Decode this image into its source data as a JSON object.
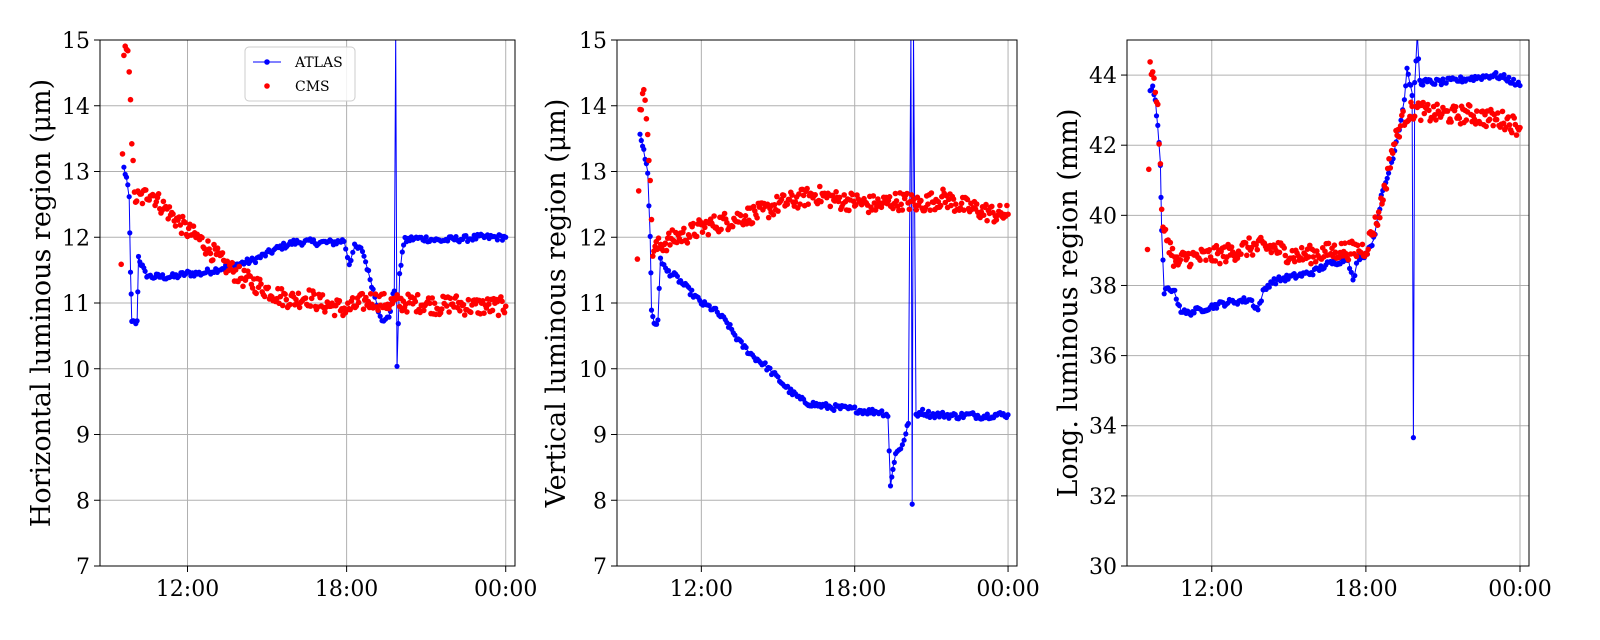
{
  "chart_data": [
    {
      "type": "scatter",
      "ylabel": "Horizontal luminous region (μm)",
      "xlabel": "",
      "x_range_hours": [
        8.7,
        24.35
      ],
      "ylim": [
        7,
        15
      ],
      "x_ticks": [
        {
          "hour": 12,
          "label": "12:00"
        },
        {
          "hour": 18,
          "label": "18:00"
        },
        {
          "hour": 24,
          "label": "00:00"
        }
      ],
      "y_ticks": [
        7,
        8,
        9,
        10,
        11,
        12,
        13,
        14,
        15
      ],
      "grid": true,
      "legend": {
        "placement": "top-center",
        "entries": [
          "ATLAS",
          "CMS"
        ]
      },
      "series": [
        {
          "name": "ATLAS",
          "color": "#0000ff",
          "style": "line+markers",
          "points": [
            [
              9.6,
              13.05
            ],
            [
              9.7,
              12.9
            ],
            [
              9.8,
              12.6
            ],
            [
              9.85,
              11.5
            ],
            [
              9.9,
              10.7
            ],
            [
              10.0,
              10.7
            ],
            [
              10.1,
              10.7
            ],
            [
              10.15,
              11.7
            ],
            [
              10.25,
              11.6
            ],
            [
              10.4,
              11.45
            ],
            [
              10.6,
              11.4
            ],
            [
              11.0,
              11.4
            ],
            [
              11.5,
              11.4
            ],
            [
              12.0,
              11.45
            ],
            [
              12.5,
              11.45
            ],
            [
              13.0,
              11.5
            ],
            [
              13.5,
              11.55
            ],
            [
              14.0,
              11.6
            ],
            [
              14.5,
              11.65
            ],
            [
              15.0,
              11.75
            ],
            [
              15.5,
              11.85
            ],
            [
              16.0,
              11.92
            ],
            [
              16.5,
              11.93
            ],
            [
              17.0,
              11.92
            ],
            [
              17.5,
              11.92
            ],
            [
              17.9,
              11.95
            ],
            [
              18.1,
              11.6
            ],
            [
              18.3,
              11.85
            ],
            [
              18.6,
              11.8
            ],
            [
              19.0,
              11.2
            ],
            [
              19.2,
              10.9
            ],
            [
              19.4,
              10.7
            ],
            [
              19.6,
              10.8
            ],
            [
              19.7,
              11.0
            ],
            [
              19.8,
              11.2
            ],
            [
              19.85,
              15.1
            ],
            [
              19.9,
              10.0
            ],
            [
              20.0,
              11.4
            ],
            [
              20.1,
              11.8
            ],
            [
              20.2,
              11.95
            ],
            [
              20.5,
              11.98
            ],
            [
              21.0,
              11.98
            ],
            [
              21.5,
              11.95
            ],
            [
              22.0,
              11.97
            ],
            [
              22.5,
              11.98
            ],
            [
              23.0,
              12.0
            ],
            [
              23.5,
              12.0
            ],
            [
              24.0,
              12.0
            ]
          ]
        },
        {
          "name": "CMS",
          "color": "#ff0000",
          "style": "markers",
          "points": [
            [
              9.5,
              11.65
            ],
            [
              9.6,
              14.7
            ],
            [
              9.7,
              14.85
            ],
            [
              9.8,
              14.6
            ],
            [
              9.85,
              14.2
            ],
            [
              9.9,
              13.5
            ],
            [
              10.0,
              12.6
            ],
            [
              10.3,
              12.6
            ],
            [
              10.6,
              12.7
            ],
            [
              11.0,
              12.5
            ],
            [
              11.5,
              12.3
            ],
            [
              12.0,
              12.1
            ],
            [
              12.5,
              11.95
            ],
            [
              13.0,
              11.75
            ],
            [
              13.5,
              11.55
            ],
            [
              14.0,
              11.4
            ],
            [
              14.5,
              11.3
            ],
            [
              15.0,
              11.2
            ],
            [
              15.5,
              11.1
            ],
            [
              16.0,
              11.05
            ],
            [
              16.5,
              11.1
            ],
            [
              17.0,
              11.0
            ],
            [
              17.5,
              10.95
            ],
            [
              18.0,
              10.9
            ],
            [
              18.5,
              11.0
            ],
            [
              19.0,
              11.05
            ],
            [
              19.5,
              11.0
            ],
            [
              20.0,
              11.0
            ],
            [
              20.5,
              11.0
            ],
            [
              21.0,
              11.0
            ],
            [
              21.5,
              10.95
            ],
            [
              22.0,
              11.0
            ],
            [
              22.5,
              10.95
            ],
            [
              23.0,
              10.95
            ],
            [
              23.5,
              10.95
            ],
            [
              24.0,
              10.95
            ]
          ]
        }
      ]
    },
    {
      "type": "scatter",
      "ylabel": "Vertical luminous region (μm)",
      "xlabel": "",
      "x_range_hours": [
        8.7,
        24.35
      ],
      "ylim": [
        7,
        15
      ],
      "x_ticks": [
        {
          "hour": 12,
          "label": "12:00"
        },
        {
          "hour": 18,
          "label": "18:00"
        },
        {
          "hour": 24,
          "label": "00:00"
        }
      ],
      "y_ticks": [
        7,
        8,
        9,
        10,
        11,
        12,
        13,
        14,
        15
      ],
      "grid": true,
      "series": [
        {
          "name": "ATLAS",
          "color": "#0000ff",
          "style": "line+markers",
          "points": [
            [
              9.6,
              13.6
            ],
            [
              9.7,
              13.4
            ],
            [
              9.8,
              13.2
            ],
            [
              9.9,
              13.0
            ],
            [
              10.0,
              12.0
            ],
            [
              10.05,
              10.9
            ],
            [
              10.15,
              10.7
            ],
            [
              10.3,
              10.7
            ],
            [
              10.4,
              11.7
            ],
            [
              10.6,
              11.5
            ],
            [
              11.0,
              11.4
            ],
            [
              11.5,
              11.2
            ],
            [
              12.0,
              11.0
            ],
            [
              12.5,
              10.9
            ],
            [
              13.0,
              10.7
            ],
            [
              13.5,
              10.4
            ],
            [
              14.0,
              10.2
            ],
            [
              14.5,
              10.05
            ],
            [
              15.0,
              9.85
            ],
            [
              15.5,
              9.65
            ],
            [
              16.0,
              9.5
            ],
            [
              16.5,
              9.45
            ],
            [
              17.0,
              9.42
            ],
            [
              17.5,
              9.4
            ],
            [
              18.0,
              9.38
            ],
            [
              18.5,
              9.35
            ],
            [
              19.0,
              9.35
            ],
            [
              19.3,
              9.3
            ],
            [
              19.4,
              8.2
            ],
            [
              19.5,
              8.5
            ],
            [
              19.6,
              8.7
            ],
            [
              19.8,
              8.8
            ],
            [
              20.0,
              9.0
            ],
            [
              20.1,
              9.2
            ],
            [
              20.2,
              15.1
            ],
            [
              20.25,
              7.9
            ],
            [
              20.3,
              15.1
            ],
            [
              20.4,
              9.3
            ],
            [
              20.6,
              9.35
            ],
            [
              21.0,
              9.3
            ],
            [
              21.5,
              9.3
            ],
            [
              22.0,
              9.28
            ],
            [
              22.5,
              9.3
            ],
            [
              23.0,
              9.28
            ],
            [
              23.5,
              9.3
            ],
            [
              24.0,
              9.3
            ]
          ]
        },
        {
          "name": "CMS",
          "color": "#ff0000",
          "style": "markers",
          "points": [
            [
              9.5,
              11.6
            ],
            [
              9.6,
              14.0
            ],
            [
              9.7,
              14.1
            ],
            [
              9.8,
              14.15
            ],
            [
              9.9,
              13.7
            ],
            [
              10.1,
              11.8
            ],
            [
              10.5,
              11.9
            ],
            [
              11.0,
              12.0
            ],
            [
              11.5,
              12.05
            ],
            [
              12.0,
              12.15
            ],
            [
              12.5,
              12.2
            ],
            [
              13.0,
              12.25
            ],
            [
              13.5,
              12.3
            ],
            [
              14.0,
              12.35
            ],
            [
              14.5,
              12.4
            ],
            [
              15.0,
              12.5
            ],
            [
              15.5,
              12.55
            ],
            [
              16.0,
              12.6
            ],
            [
              16.5,
              12.65
            ],
            [
              17.0,
              12.6
            ],
            [
              17.5,
              12.55
            ],
            [
              18.0,
              12.55
            ],
            [
              18.5,
              12.5
            ],
            [
              19.0,
              12.5
            ],
            [
              19.5,
              12.55
            ],
            [
              20.0,
              12.55
            ],
            [
              20.5,
              12.5
            ],
            [
              21.0,
              12.55
            ],
            [
              21.5,
              12.6
            ],
            [
              22.0,
              12.5
            ],
            [
              22.5,
              12.45
            ],
            [
              23.0,
              12.4
            ],
            [
              23.5,
              12.35
            ],
            [
              24.0,
              12.35
            ]
          ]
        }
      ]
    },
    {
      "type": "scatter",
      "ylabel": "Long. luminous region (mm)",
      "xlabel": "",
      "x_range_hours": [
        8.7,
        24.35
      ],
      "ylim": [
        30,
        45
      ],
      "x_ticks": [
        {
          "hour": 12,
          "label": "12:00"
        },
        {
          "hour": 18,
          "label": "18:00"
        },
        {
          "hour": 24,
          "label": "00:00"
        }
      ],
      "y_ticks": [
        30,
        32,
        34,
        36,
        38,
        40,
        42,
        44
      ],
      "grid": true,
      "series": [
        {
          "name": "ATLAS",
          "color": "#0000ff",
          "style": "line+markers",
          "points": [
            [
              9.6,
              43.5
            ],
            [
              9.7,
              43.7
            ],
            [
              9.8,
              43.3
            ],
            [
              9.9,
              42.5
            ],
            [
              10.0,
              41.5
            ],
            [
              10.05,
              39.5
            ],
            [
              10.15,
              37.8
            ],
            [
              10.3,
              37.9
            ],
            [
              10.5,
              37.9
            ],
            [
              10.8,
              37.3
            ],
            [
              11.0,
              37.2
            ],
            [
              11.5,
              37.3
            ],
            [
              12.0,
              37.4
            ],
            [
              12.5,
              37.5
            ],
            [
              13.0,
              37.55
            ],
            [
              13.5,
              37.6
            ],
            [
              13.8,
              37.3
            ],
            [
              14.0,
              37.8
            ],
            [
              14.3,
              38.1
            ],
            [
              14.8,
              38.2
            ],
            [
              15.5,
              38.3
            ],
            [
              16.0,
              38.4
            ],
            [
              16.5,
              38.6
            ],
            [
              17.0,
              38.7
            ],
            [
              17.3,
              38.8
            ],
            [
              17.5,
              38.1
            ],
            [
              17.7,
              38.8
            ],
            [
              18.0,
              38.9
            ],
            [
              18.3,
              39.3
            ],
            [
              18.6,
              40.5
            ],
            [
              19.0,
              41.5
            ],
            [
              19.3,
              42.5
            ],
            [
              19.5,
              43.3
            ],
            [
              19.6,
              44.2
            ],
            [
              19.7,
              43.8
            ],
            [
              19.8,
              43.5
            ],
            [
              19.85,
              33.6
            ],
            [
              19.9,
              43.7
            ],
            [
              20.0,
              45.2
            ],
            [
              20.1,
              43.8
            ],
            [
              20.5,
              43.8
            ],
            [
              21.0,
              43.8
            ],
            [
              21.5,
              43.85
            ],
            [
              22.0,
              43.9
            ],
            [
              22.5,
              43.95
            ],
            [
              23.0,
              44.0
            ],
            [
              23.5,
              43.9
            ],
            [
              24.0,
              43.7
            ]
          ]
        },
        {
          "name": "CMS",
          "color": "#ff0000",
          "style": "markers",
          "points": [
            [
              9.5,
              38.9
            ],
            [
              9.6,
              44.2
            ],
            [
              9.7,
              44.3
            ],
            [
              9.8,
              43.4
            ],
            [
              9.9,
              43.2
            ],
            [
              10.0,
              41.2
            ],
            [
              10.1,
              39.5
            ],
            [
              10.3,
              39.3
            ],
            [
              10.6,
              38.6
            ],
            [
              11.0,
              38.8
            ],
            [
              11.5,
              38.8
            ],
            [
              12.0,
              38.85
            ],
            [
              12.5,
              38.9
            ],
            [
              13.0,
              39.0
            ],
            [
              13.5,
              39.1
            ],
            [
              14.0,
              39.1
            ],
            [
              14.5,
              39.05
            ],
            [
              15.0,
              38.9
            ],
            [
              15.5,
              38.85
            ],
            [
              16.0,
              38.9
            ],
            [
              16.5,
              38.95
            ],
            [
              17.0,
              39.0
            ],
            [
              17.5,
              39.0
            ],
            [
              18.0,
              39.05
            ],
            [
              18.5,
              40.0
            ],
            [
              18.8,
              41.0
            ],
            [
              19.0,
              41.8
            ],
            [
              19.3,
              42.5
            ],
            [
              19.5,
              42.8
            ],
            [
              19.8,
              43.0
            ],
            [
              20.0,
              43.0
            ],
            [
              20.5,
              42.9
            ],
            [
              21.0,
              42.9
            ],
            [
              21.5,
              42.85
            ],
            [
              22.0,
              42.9
            ],
            [
              22.5,
              42.8
            ],
            [
              23.0,
              42.75
            ],
            [
              23.5,
              42.7
            ],
            [
              24.0,
              42.5
            ]
          ]
        }
      ]
    }
  ]
}
